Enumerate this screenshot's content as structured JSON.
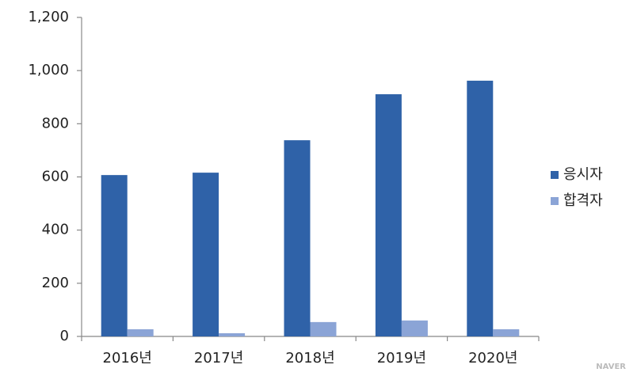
{
  "chart_data": {
    "type": "bar",
    "categories": [
      "2016년",
      "2017년",
      "2018년",
      "2019년",
      "2020년"
    ],
    "series": [
      {
        "name": "응시자",
        "color": "#2f62a8",
        "values": [
          607,
          616,
          738,
          911,
          962
        ]
      },
      {
        "name": "합격자",
        "color": "#8ba4d6",
        "values": [
          27,
          12,
          54,
          60,
          27
        ]
      }
    ],
    "ylim": [
      0,
      1200
    ],
    "yticks": [
      0,
      200,
      400,
      600,
      800,
      {
        "value": 1000,
        "label": "1,000"
      },
      {
        "value": 1200,
        "label": "1,200"
      }
    ],
    "grid": false,
    "legend": "right",
    "watermark": "NAVER"
  }
}
